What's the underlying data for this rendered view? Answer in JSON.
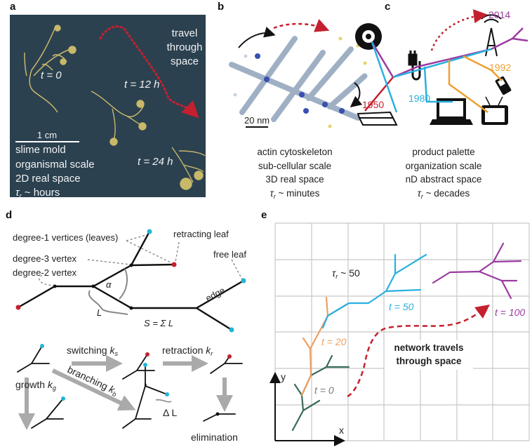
{
  "panels": {
    "a": {
      "label": "a",
      "t0": "t = 0",
      "t12": "t = 12 h",
      "t24": "t = 24 h",
      "travel": [
        "travel",
        "through",
        "space"
      ],
      "scale_bar": "1 cm",
      "lines": [
        "slime mold",
        "organismal scale",
        "2D real space"
      ],
      "tau_symbol": "τ",
      "tau_sub": "r",
      "tau_rest": " ~ hours"
    },
    "b": {
      "label": "b",
      "scale_bar": "20 nm",
      "lines": [
        "actin cytoskeleton",
        "sub-cellular scale",
        "3D real space"
      ],
      "tau_symbol": "τ",
      "tau_sub": "r",
      "tau_rest": " ~ minutes"
    },
    "c": {
      "label": "c",
      "years": {
        "y2014": "2014",
        "y1992": "1992",
        "y1980": "1980",
        "y1950": "1950"
      },
      "lines": [
        "product palette",
        "organization scale",
        "nD abstract space"
      ],
      "tau_symbol": "τ",
      "tau_sub": "r",
      "tau_rest": " ~ decades"
    },
    "d": {
      "label": "d",
      "degree1": "degree-1 vertices (leaves)",
      "degree3": "degree-3 vertex",
      "degree2": "degree-2 vertex",
      "retracting": "retracting leaf",
      "free_leaf": "free leaf",
      "edge": "edge",
      "alpha": "α",
      "L": "L",
      "S": "S = Σ L",
      "switching": "switching ",
      "k_s": "k",
      "k_s_sub": "s",
      "retraction": "retraction ",
      "k_r": "k",
      "k_r_sub": "r",
      "growth": "growth ",
      "k_g": "k",
      "k_g_sub": "g",
      "branching": "branching ",
      "k_b": "k",
      "k_b_sub": "b",
      "delta_L": "Δ L",
      "elimination": "elimination"
    },
    "e": {
      "label": "e",
      "tau_symbol": "τ",
      "tau_sub": "r",
      "tau_rest": " ~ 50",
      "t0": "t = 0",
      "t20": "t = 20",
      "t50": "t = 50",
      "t100": "t = 100",
      "travels": [
        "network travels",
        "through space"
      ],
      "axis_x": "x",
      "axis_y": "y"
    }
  },
  "colors": {
    "slime_bg": "#2b4150",
    "slime": "#c8b86a",
    "path_red": "#c4202e",
    "leaf_cyan": "#23b5d3",
    "leaf_red": "#c4202e",
    "t0": "#3a6b5a",
    "t20": "#f0a060",
    "t50": "#2ab0e0",
    "t100": "#9b3aa0",
    "y1950": "#c4202e",
    "y1980": "#2ab0e0",
    "y1992": "#f0a030",
    "y2014": "#9b3aa0"
  }
}
